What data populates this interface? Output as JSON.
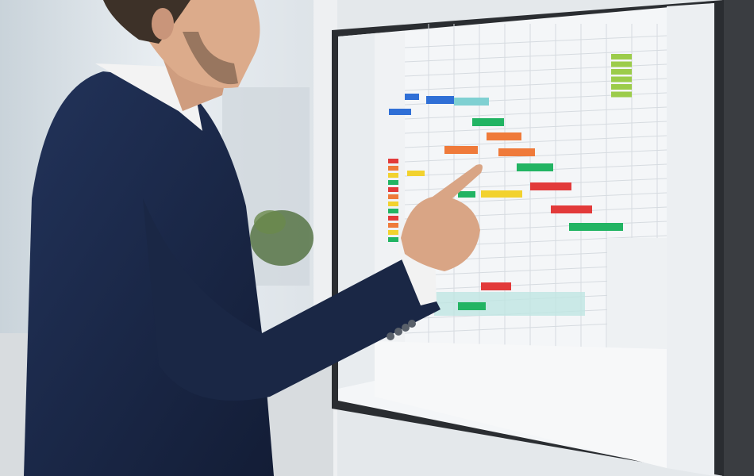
{
  "scene": {
    "description_colors": {
      "wall": "#e6eaee",
      "window": "#dfe6ec",
      "suit": "#1c2a4a",
      "skin": "#d9a888",
      "bezel": "#2a2d31",
      "screen": "#f4f6f8"
    },
    "gantt_bar_colors": {
      "blue": "#2f6fd6",
      "teal": "#7fd0d2",
      "green": "#22b463",
      "orange": "#ef7a3a",
      "red": "#e23a3a",
      "yellow": "#f2d22e",
      "lime": "#9ccc4a"
    }
  }
}
